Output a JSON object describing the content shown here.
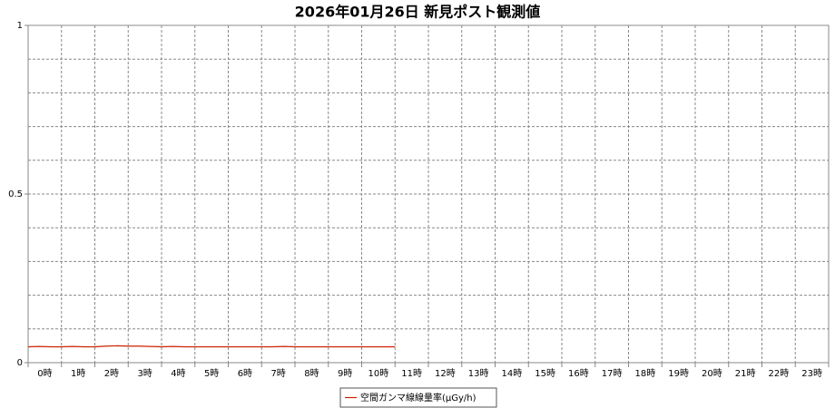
{
  "chart_data": {
    "type": "line",
    "title": "2026年01月26日 新見ポスト観測値",
    "categories": [
      "0時",
      "1時",
      "2時",
      "3時",
      "4時",
      "5時",
      "6時",
      "7時",
      "8時",
      "9時",
      "10時",
      "11時",
      "12時",
      "13時",
      "14時",
      "15時",
      "16時",
      "17時",
      "18時",
      "19時",
      "20時",
      "21時",
      "22時",
      "23時"
    ],
    "xlim": [
      0,
      24
    ],
    "xgrid": [
      0,
      1,
      2,
      3,
      4,
      5,
      6,
      7,
      8,
      9,
      10,
      11,
      12,
      13,
      14,
      15,
      16,
      17,
      18,
      19,
      20,
      21,
      22,
      23,
      24
    ],
    "ylim": [
      0,
      1
    ],
    "yticks": [
      0,
      0.5,
      1
    ],
    "ygrid": [
      0,
      0.1,
      0.2,
      0.3,
      0.4,
      0.5,
      0.6,
      0.7,
      0.8,
      0.9,
      1
    ],
    "grid": true,
    "legend": "bottom",
    "series": [
      {
        "name": "空間ガンマ線線量率(μGy/h)",
        "color": "#cc2200",
        "x": [
          0,
          0.33,
          0.67,
          1,
          1.33,
          1.67,
          2,
          2.33,
          2.67,
          3,
          3.33,
          3.67,
          4,
          4.33,
          4.67,
          5,
          5.33,
          5.67,
          6,
          6.33,
          6.67,
          7,
          7.33,
          7.67,
          8,
          8.33,
          8.67,
          9,
          9.33,
          9.67,
          10,
          10.33,
          10.67,
          11
        ],
        "values": [
          0.047,
          0.048,
          0.047,
          0.047,
          0.048,
          0.047,
          0.047,
          0.049,
          0.05,
          0.049,
          0.049,
          0.048,
          0.047,
          0.048,
          0.047,
          0.047,
          0.047,
          0.047,
          0.047,
          0.047,
          0.047,
          0.047,
          0.047,
          0.048,
          0.047,
          0.047,
          0.047,
          0.047,
          0.047,
          0.047,
          0.047,
          0.047,
          0.047,
          0.047
        ]
      }
    ]
  }
}
